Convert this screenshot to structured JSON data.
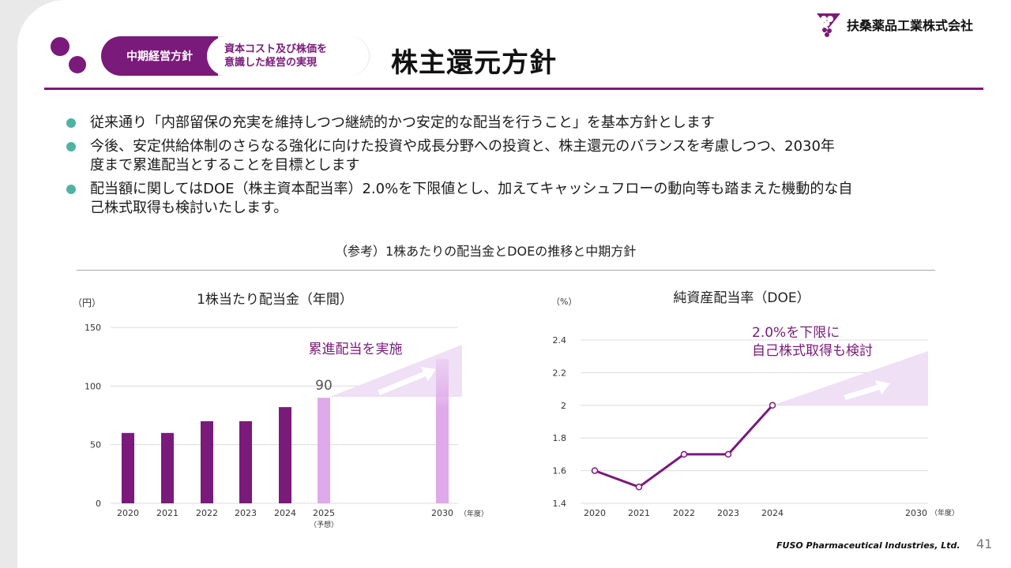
{
  "header": {
    "section_label": "中期経営方針",
    "subtitle_line1": "資本コスト及び株価を",
    "subtitle_line2": "意識した経営の実現",
    "title": "株主還元方針",
    "company": "扶桑薬品工業株式会社"
  },
  "colors": {
    "brand": "#7a1a7b",
    "bar_forecast": "#dfa9ea",
    "bullet": "#4fb3a2",
    "arrow_fill": "#efe0f5"
  },
  "bullets": [
    {
      "lines": [
        "従来通り「内部留保の充実を維持しつつ継続的かつ安定的な配当を行うこと」を基本方針とします"
      ]
    },
    {
      "lines": [
        "今後、安定供給体制のさらなる強化に向けた投資や成長分野への投資と、株主還元のバランスを考慮しつつ、2030年",
        "度まで累進配当とすることを目標とします"
      ]
    },
    {
      "lines": [
        "配当額に関してはDOE（株主資本配当率）2.0%を下限値とし、加えてキャッシュフローの動向等も踏まえた機動的な自",
        "己株式取得も検討いたします。"
      ]
    }
  ],
  "reference_title": "（参考）1株あたりの配当金とDOEの推移と中期方針",
  "chart_data": [
    {
      "type": "bar",
      "title": "1株当たり配当金（年間）",
      "ylabel": "（円）",
      "xlabel": "（年度）",
      "categories": [
        "2020",
        "2021",
        "2022",
        "2023",
        "2024",
        "2025",
        "2030"
      ],
      "category_sublabels": [
        "",
        "",
        "",
        "",
        "",
        "（予想）",
        ""
      ],
      "values": [
        60,
        60,
        70,
        70,
        82,
        90,
        null
      ],
      "forecast_index": 5,
      "data_label": "90",
      "annotation": "累進配当を実施",
      "ylim": [
        0,
        150
      ],
      "yticks": [
        0,
        50,
        100,
        150
      ],
      "grid": true
    },
    {
      "type": "line",
      "title": "純資産配当率（DOE）",
      "ylabel": "（%）",
      "xlabel": "（年度）",
      "categories": [
        "2020",
        "2021",
        "2022",
        "2023",
        "2024",
        "2030"
      ],
      "values": [
        1.6,
        1.5,
        1.7,
        1.7,
        2.0,
        null
      ],
      "annotation_line1": "2.0%を下限に",
      "annotation_line2": "自己株式取得も検討",
      "ylim": [
        1.4,
        2.4
      ],
      "yticks": [
        "1.4",
        "1.6",
        "1.8",
        "2",
        "2.2",
        "2.4"
      ],
      "grid": true
    }
  ],
  "footer": {
    "brand": "FUSO Pharmaceutical Industries, Ltd.",
    "page": "41"
  }
}
